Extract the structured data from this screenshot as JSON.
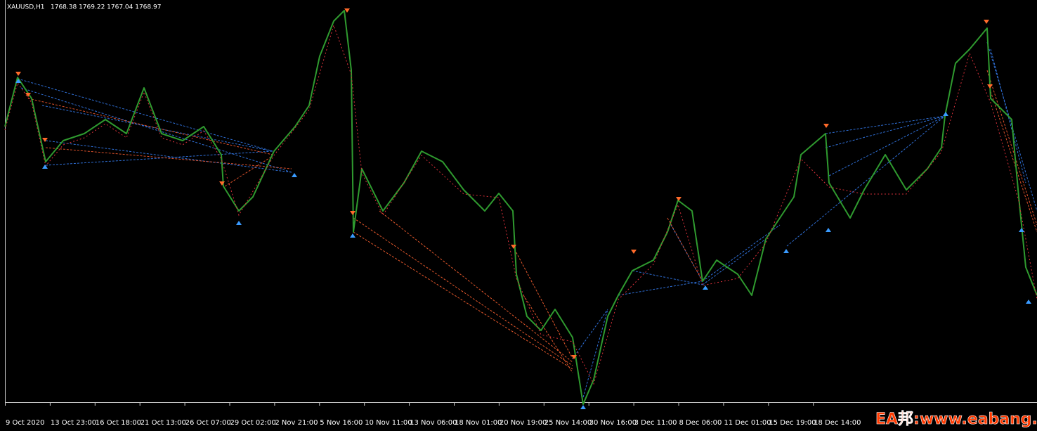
{
  "header": {
    "symbol": "XAUUSD,H1",
    "quote": "1768.38 1769.22 1767.04 1768.97"
  },
  "time_axis": {
    "labels": [
      "9 Oct 2020",
      "13 Oct 23:00",
      "16 Oct 18:00",
      "21 Oct 13:00",
      "26 Oct 07:00",
      "29 Oct 02:00",
      "2 Nov 21:00",
      "5 Nov 16:00",
      "10 Nov 11:00",
      "13 Nov 06:00",
      "18 Nov 01:00",
      "20 Nov 19:00",
      "25 Nov 14:00",
      "30 Nov 16:00",
      "3 Dec 11:00",
      "8 Dec 06:00",
      "11 Dec 01:00",
      "15 Dec 19:00",
      "18 Dec 14:00"
    ]
  },
  "watermark": "EA邦:www.eabang.com"
}
